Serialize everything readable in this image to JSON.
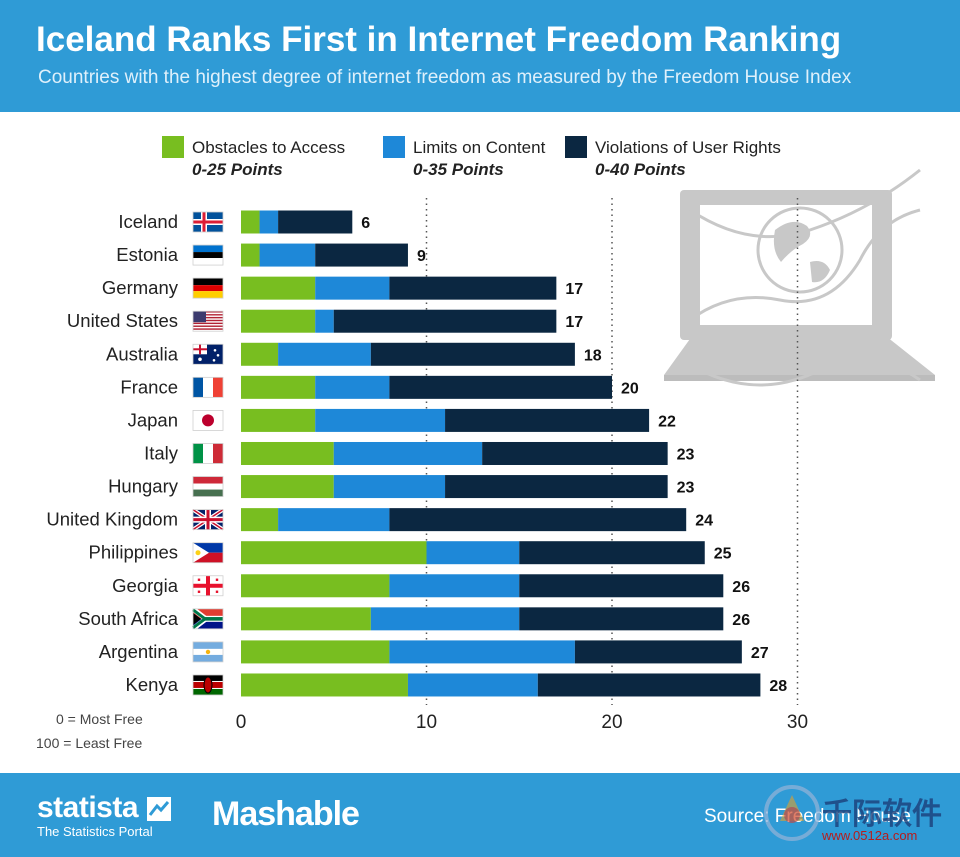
{
  "header": {
    "title": "Iceland Ranks First in Internet Freedom Ranking",
    "subtitle": "Countries with the highest degree of internet freedom as measured by the Freedom House Index"
  },
  "legend": [
    {
      "name": "Obstacles to Access",
      "range": "0-25 Points",
      "color": "#78be20"
    },
    {
      "name": "Limits on Content",
      "range": "0-35 Points",
      "color": "#1e88d8"
    },
    {
      "name": "Violations of User Rights",
      "range": "0-40 Points",
      "color": "#0b2741"
    }
  ],
  "notes": {
    "most_free": "0 = Most Free",
    "least_free": "100 = Least Free"
  },
  "chart_data": {
    "type": "bar",
    "orientation": "horizontal",
    "stacked": true,
    "categories": [
      "Iceland",
      "Estonia",
      "Germany",
      "United States",
      "Australia",
      "France",
      "Japan",
      "Italy",
      "Hungary",
      "United Kingdom",
      "Philippines",
      "Georgia",
      "South Africa",
      "Argentina",
      "Kenya"
    ],
    "series": [
      {
        "name": "Obstacles to Access",
        "values": [
          1,
          1,
          4,
          4,
          2,
          4,
          4,
          5,
          5,
          2,
          10,
          8,
          7,
          8,
          9
        ]
      },
      {
        "name": "Limits on Content",
        "values": [
          1,
          3,
          4,
          1,
          5,
          4,
          7,
          8,
          6,
          6,
          5,
          7,
          8,
          10,
          7
        ]
      },
      {
        "name": "Violations of User Rights",
        "values": [
          4,
          5,
          9,
          12,
          11,
          12,
          11,
          10,
          12,
          16,
          10,
          11,
          11,
          9,
          12
        ]
      }
    ],
    "totals": [
      6,
      9,
      17,
      17,
      18,
      20,
      22,
      23,
      23,
      24,
      25,
      26,
      26,
      27,
      28
    ],
    "xlim": [
      0,
      30
    ],
    "xticks": [
      0,
      10,
      20,
      30
    ],
    "grid": "vertical dotted",
    "legend_position": "top"
  },
  "colors": {
    "accent": "#2f9bd6",
    "illustration": "#c8c8c8"
  },
  "footer": {
    "brand": "statista",
    "brand_tagline": "The Statistics Portal",
    "partner": "Mashable",
    "source": "Source: Freedom House",
    "watermark": "千际软件",
    "watermark_url": "www.0512a.com"
  }
}
